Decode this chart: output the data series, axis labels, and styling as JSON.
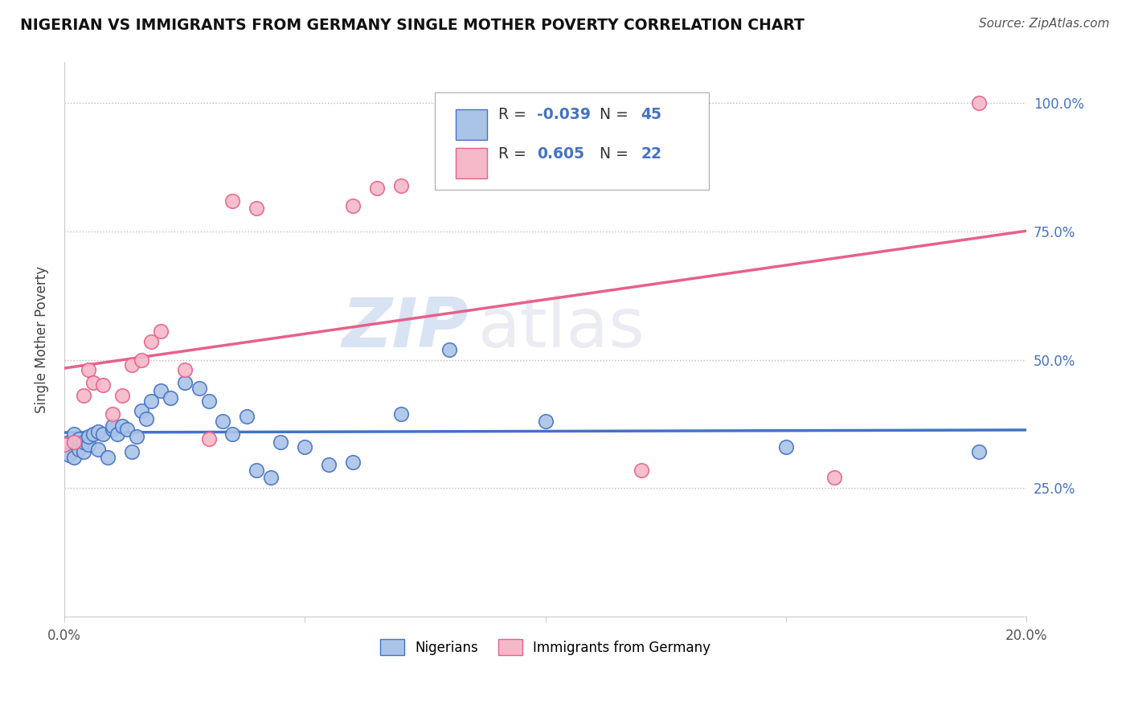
{
  "title": "NIGERIAN VS IMMIGRANTS FROM GERMANY SINGLE MOTHER POVERTY CORRELATION CHART",
  "source": "Source: ZipAtlas.com",
  "ylabel": "Single Mother Poverty",
  "watermark_zip": "ZIP",
  "watermark_atlas": "atlas",
  "xmin": 0.0,
  "xmax": 0.2,
  "ymin": 0.0,
  "ymax": 1.05,
  "nigerian_color": "#aac4e8",
  "germany_color": "#f5b8c8",
  "nigerian_edge": "#4472c4",
  "germany_edge": "#e8608a",
  "nigerian_line": "#4472c4",
  "germany_line": "#e8608a",
  "nigerian_R": -0.039,
  "nigerian_N": 45,
  "germany_R": 0.605,
  "germany_N": 22,
  "nigerian_x": [
    0.0,
    0.001,
    0.001,
    0.002,
    0.002,
    0.003,
    0.003,
    0.004,
    0.004,
    0.005,
    0.005,
    0.006,
    0.007,
    0.007,
    0.008,
    0.009,
    0.01,
    0.01,
    0.011,
    0.012,
    0.013,
    0.014,
    0.015,
    0.016,
    0.017,
    0.018,
    0.02,
    0.022,
    0.025,
    0.028,
    0.03,
    0.033,
    0.035,
    0.038,
    0.04,
    0.043,
    0.045,
    0.05,
    0.055,
    0.06,
    0.07,
    0.08,
    0.1,
    0.15,
    0.19
  ],
  "nigerian_y": [
    0.335,
    0.315,
    0.34,
    0.355,
    0.31,
    0.325,
    0.345,
    0.32,
    0.34,
    0.335,
    0.35,
    0.355,
    0.325,
    0.36,
    0.355,
    0.31,
    0.365,
    0.37,
    0.355,
    0.37,
    0.365,
    0.32,
    0.35,
    0.4,
    0.385,
    0.42,
    0.44,
    0.425,
    0.455,
    0.445,
    0.42,
    0.38,
    0.355,
    0.39,
    0.285,
    0.27,
    0.34,
    0.33,
    0.295,
    0.3,
    0.395,
    0.52,
    0.38,
    0.33,
    0.32
  ],
  "germany_x": [
    0.0,
    0.002,
    0.004,
    0.005,
    0.006,
    0.008,
    0.01,
    0.012,
    0.014,
    0.016,
    0.018,
    0.02,
    0.025,
    0.03,
    0.035,
    0.04,
    0.06,
    0.065,
    0.07,
    0.12,
    0.16,
    0.19
  ],
  "germany_y": [
    0.335,
    0.34,
    0.43,
    0.48,
    0.455,
    0.45,
    0.395,
    0.43,
    0.49,
    0.5,
    0.535,
    0.555,
    0.48,
    0.345,
    0.81,
    0.795,
    0.8,
    0.835,
    0.84,
    0.285,
    0.27,
    1.0
  ]
}
